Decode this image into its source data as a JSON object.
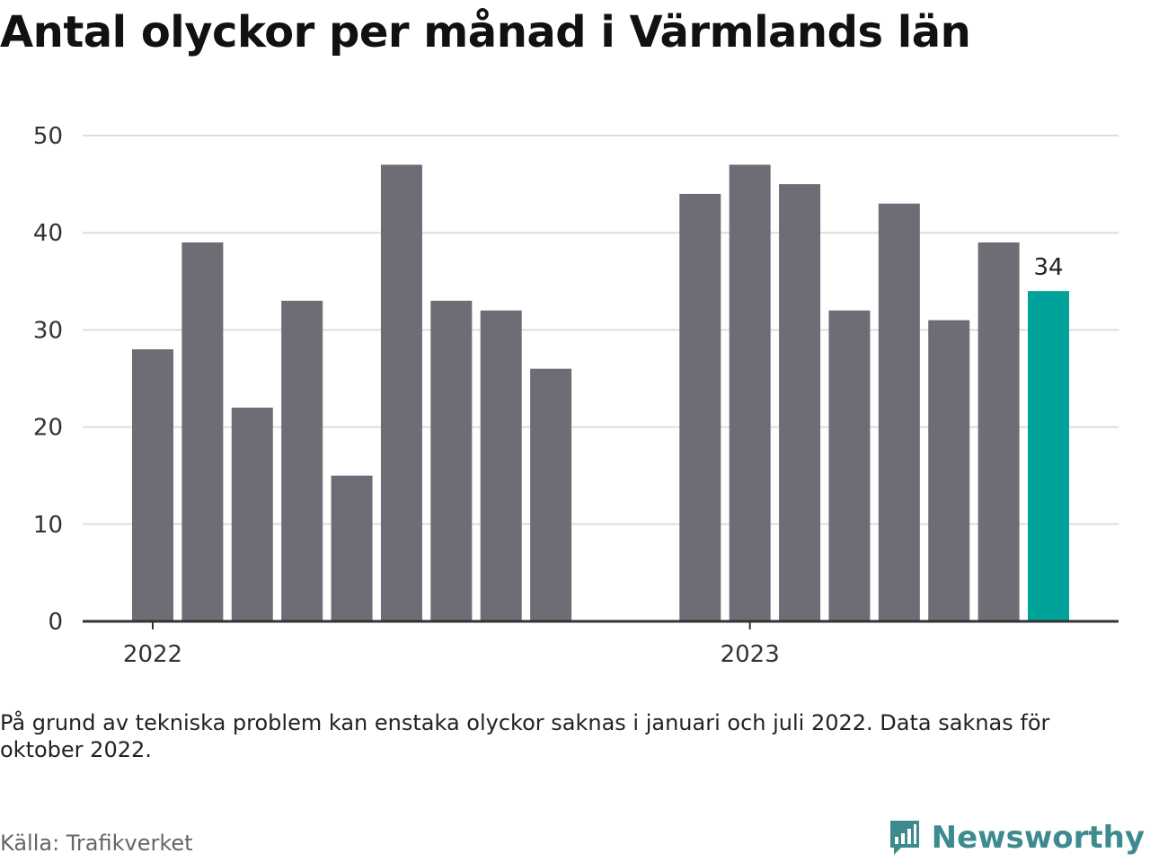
{
  "title": "Antal olyckor per månad i Värmlands län",
  "note": "På grund av tekniska problem kan enstaka olyckor saknas i januari och juli 2022. Data saknas för oktober 2022.",
  "source": "Källa: Trafikverket",
  "logo_text": "Newsworthy",
  "colors": {
    "bar": "#6e6d75",
    "highlight": "#00a39a",
    "grid": "#dddddd",
    "axis": "#333333",
    "logo": "#3d8a8f"
  },
  "chart_data": {
    "type": "bar",
    "title": "Antal olyckor per månad i Värmlands län",
    "xlabel": "",
    "ylabel": "",
    "ylim": [
      0,
      50
    ],
    "yticks": [
      0,
      10,
      20,
      30,
      40,
      50
    ],
    "x_tick_labels": [
      {
        "label": "2022",
        "at": "2022-01"
      },
      {
        "label": "2023",
        "at": "2023-01"
      }
    ],
    "categories": [
      "2022-01",
      "2022-02",
      "2022-03",
      "2022-04",
      "2022-05",
      "2022-06",
      "2022-07",
      "2022-08",
      "2022-09",
      "2022-10",
      "2022-11",
      "2022-12",
      "2023-01",
      "2023-02",
      "2023-03",
      "2023-04",
      "2023-05",
      "2023-06",
      "2023-07"
    ],
    "values": [
      28,
      39,
      22,
      33,
      15,
      47,
      33,
      32,
      26,
      null,
      null,
      44,
      47,
      45,
      32,
      43,
      31,
      39,
      34
    ],
    "highlight_index": 18,
    "data_labels": [
      {
        "index": 18,
        "text": "34"
      }
    ],
    "grid": true,
    "legend": "none"
  }
}
